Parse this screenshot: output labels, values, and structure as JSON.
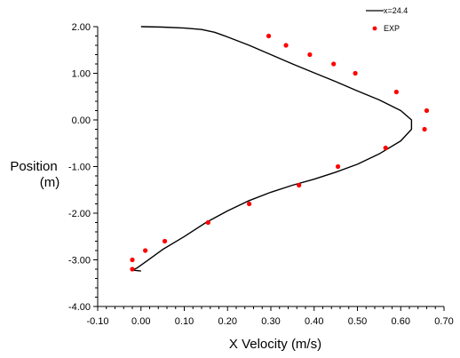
{
  "chart_data": {
    "type": "scatter",
    "xlabel": "X Velocity (m/s)",
    "ylabel_lines": [
      "Position",
      "(m)"
    ],
    "xlim": [
      -0.1,
      0.7
    ],
    "ylim": [
      -4.0,
      2.0
    ],
    "xticks": [
      -0.1,
      0.0,
      0.1,
      0.2,
      0.3,
      0.4,
      0.5,
      0.6,
      0.7
    ],
    "xtick_labels": [
      "-0.10",
      "0.00",
      "0.10",
      "0.20",
      "0.30",
      "0.40",
      "0.50",
      "0.60",
      "0.70"
    ],
    "yticks": [
      2.0,
      1.0,
      0.0,
      -1.0,
      -2.0,
      -3.0,
      -4.0
    ],
    "ytick_labels": [
      "2.00",
      "1.00",
      "0.00",
      "-1.00",
      "-2.00",
      "-3.00",
      "-4.00"
    ],
    "grid": false,
    "legend_position": "top-right",
    "series": [
      {
        "name": "x=24.4",
        "kind": "line",
        "color": "#000000",
        "points": [
          [
            0.0,
            2.0
          ],
          [
            0.05,
            1.99
          ],
          [
            0.1,
            1.97
          ],
          [
            0.14,
            1.94
          ],
          [
            0.17,
            1.88
          ],
          [
            0.2,
            1.78
          ],
          [
            0.25,
            1.6
          ],
          [
            0.3,
            1.4
          ],
          [
            0.35,
            1.2
          ],
          [
            0.4,
            1.01
          ],
          [
            0.45,
            0.82
          ],
          [
            0.5,
            0.62
          ],
          [
            0.55,
            0.43
          ],
          [
            0.6,
            0.2
          ],
          [
            0.625,
            0.0
          ],
          [
            0.625,
            -0.2
          ],
          [
            0.6,
            -0.45
          ],
          [
            0.55,
            -0.73
          ],
          [
            0.5,
            -0.95
          ],
          [
            0.45,
            -1.12
          ],
          [
            0.4,
            -1.27
          ],
          [
            0.35,
            -1.4
          ],
          [
            0.3,
            -1.55
          ],
          [
            0.25,
            -1.73
          ],
          [
            0.2,
            -1.95
          ],
          [
            0.15,
            -2.2
          ],
          [
            0.1,
            -2.5
          ],
          [
            0.05,
            -2.78
          ],
          [
            0.01,
            -3.05
          ],
          [
            -0.01,
            -3.18
          ],
          [
            -0.02,
            -3.22
          ],
          [
            0.0,
            -3.24
          ]
        ]
      },
      {
        "name": "EXP",
        "kind": "points",
        "color": "#ff0000",
        "points": [
          [
            0.295,
            1.8
          ],
          [
            0.335,
            1.6
          ],
          [
            0.39,
            1.4
          ],
          [
            0.445,
            1.2
          ],
          [
            0.495,
            1.0
          ],
          [
            0.59,
            0.6
          ],
          [
            0.66,
            0.2
          ],
          [
            0.655,
            -0.2
          ],
          [
            0.565,
            -0.6
          ],
          [
            0.455,
            -1.0
          ],
          [
            0.365,
            -1.4
          ],
          [
            0.25,
            -1.8
          ],
          [
            0.155,
            -2.2
          ],
          [
            0.055,
            -2.6
          ],
          [
            0.01,
            -2.8
          ],
          [
            -0.02,
            -3.0
          ],
          [
            -0.02,
            -3.2
          ]
        ]
      }
    ]
  }
}
